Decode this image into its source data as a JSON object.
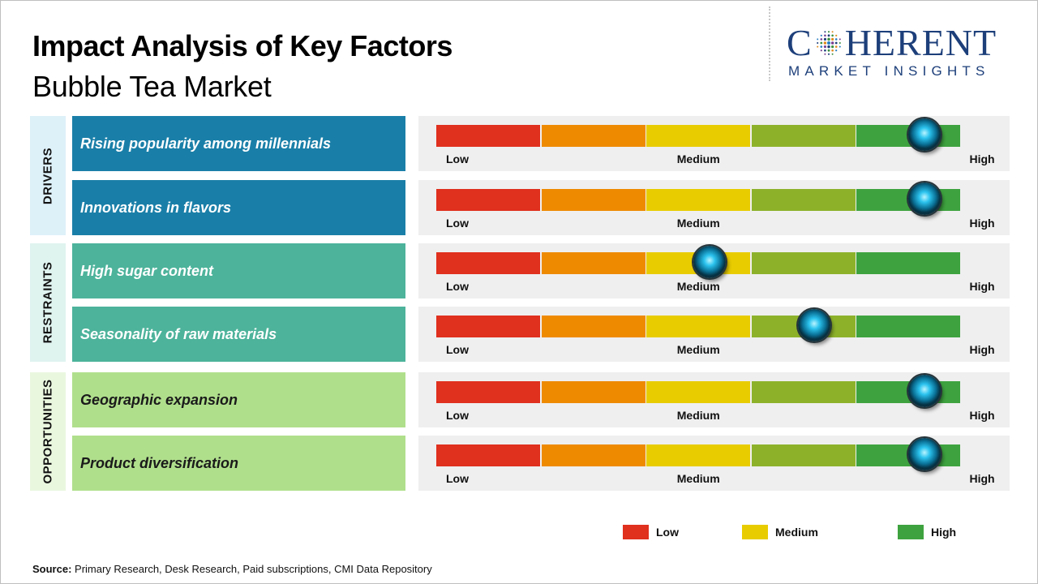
{
  "header": {
    "title": "Impact Analysis of Key Factors",
    "subtitle": "Bubble Tea Market"
  },
  "logo": {
    "text_before_o": "C",
    "text_after_o": "HERENT",
    "tagline": "MARKET INSIGHTS"
  },
  "chart_data": {
    "type": "bar",
    "title": "Impact Analysis of Key Factors",
    "subtitle": "Bubble Tea Market",
    "scale": [
      "Low",
      "Medium",
      "High"
    ],
    "segment_colors": [
      "#e0301e",
      "#ee8a00",
      "#e8cc00",
      "#8db22a",
      "#3ea33f"
    ],
    "categories": [
      {
        "name": "DRIVERS",
        "color": "#ddf1f9",
        "factor_color": "#1a7fa8"
      },
      {
        "name": "RESTRAINTS",
        "color": "#dff3ef",
        "factor_color": "#4db39b"
      },
      {
        "name": "OPPORTUNITIES",
        "color": "#eaf7df",
        "factor_color": "#b0df8c"
      }
    ],
    "factors": [
      {
        "category": "DRIVERS",
        "label": "Rising popularity among millennials",
        "impact": 0.93
      },
      {
        "category": "DRIVERS",
        "label": "Innovations in flavors",
        "impact": 0.93
      },
      {
        "category": "RESTRAINTS",
        "label": "High sugar content",
        "impact": 0.52
      },
      {
        "category": "RESTRAINTS",
        "label": "Seasonality of raw materials",
        "impact": 0.72
      },
      {
        "category": "OPPORTUNITIES",
        "label": "Geographic expansion",
        "impact": 0.93
      },
      {
        "category": "OPPORTUNITIES",
        "label": "Product diversification",
        "impact": 0.93
      }
    ],
    "legend": [
      {
        "label": "Low",
        "color": "#e0301e"
      },
      {
        "label": "Medium",
        "color": "#e8cc00"
      },
      {
        "label": "High",
        "color": "#3ea33f"
      }
    ],
    "legend_position": "bottom-right"
  },
  "footer": {
    "source_label": "Source:",
    "source_text": " Primary Research, Desk Research, Paid subscriptions, CMI Data Repository"
  }
}
